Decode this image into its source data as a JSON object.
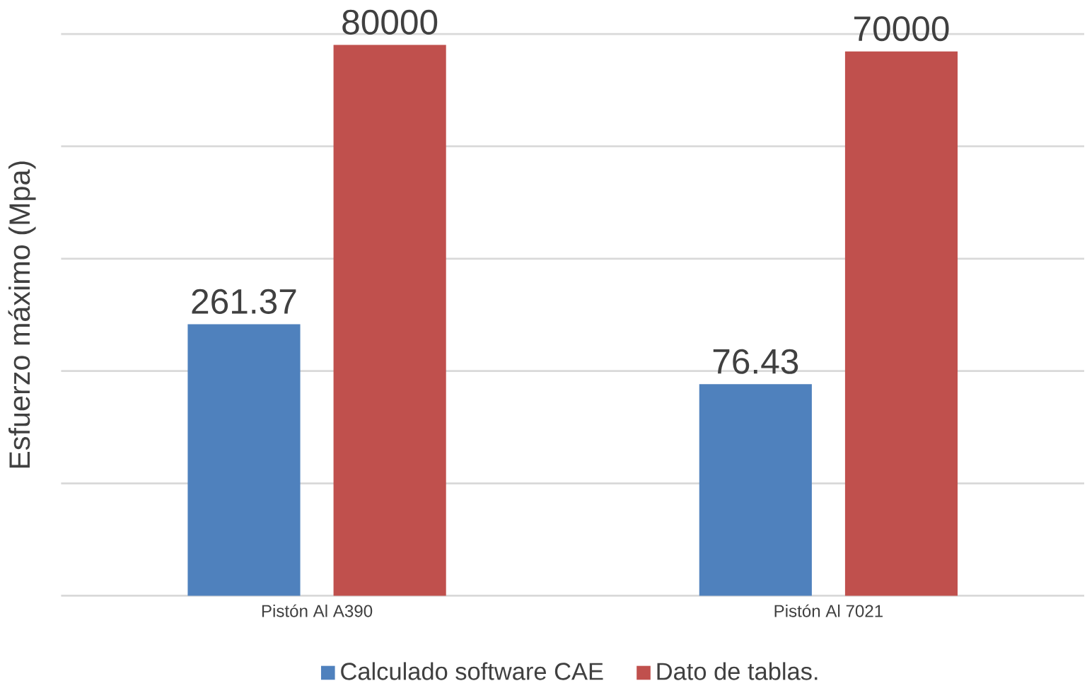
{
  "chart_data": {
    "type": "bar",
    "ylabel": "Esfuerzo máximo  (Mpa)",
    "categories": [
      "Pistón Al A390",
      "Pistón Al 7021"
    ],
    "series": [
      {
        "name": "Calculado software CAE",
        "color": "#4f81bd",
        "values": [
          261.37,
          76.43
        ]
      },
      {
        "name": "Dato de tablas.",
        "color": "#c0504d",
        "values": [
          80000,
          70000
        ]
      }
    ],
    "log": "y",
    "ylim": [
      1,
      100000
    ],
    "yticks": [
      {
        "value": 1,
        "label": null
      },
      {
        "value": 10,
        "label": null
      },
      {
        "value": 100,
        "label": null
      },
      {
        "value": 1000,
        "label": null
      },
      {
        "value": 10000,
        "label": null
      },
      {
        "value": 100000,
        "label": null
      }
    ],
    "tick_labels": "x",
    "grid": "y",
    "legend": "bottom",
    "data_labels": true
  }
}
